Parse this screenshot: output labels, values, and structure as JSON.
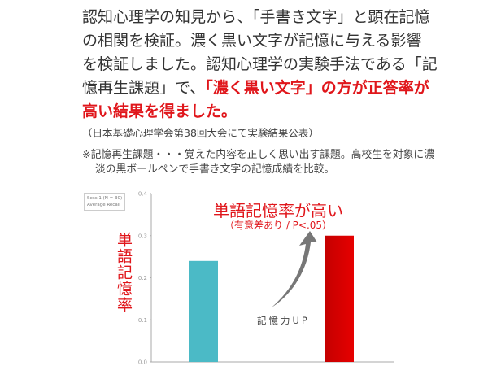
{
  "body": {
    "line1": "認知心理学の知見から、「手書き文字」と顕在記憶",
    "line2": "の相関を検証。濃く黒い文字が記憶に与える影響",
    "line3": "を検証しました。認知心理学の実験手法である「記",
    "line4_normal": "憶再生課題」で、",
    "line4_red": "「濃く黒い文字」の方が正答率が",
    "line5_red": "高い結果を得ました。",
    "source": "（日本基礎心理学会第38回大会にて実験結果公表）",
    "note_line1": "※記憶再生課題・・・覚えた内容を正しく思い出す課題。高校生を対象に濃",
    "note_line2": "淡の黒ボールペンで手書き文字の記憶成績を比較。"
  },
  "chart_data": {
    "type": "bar",
    "legend_box": [
      "Sess 1 (N = 30)",
      "Average Recall"
    ],
    "title": "単語記憶率が高い",
    "subtitle": "（有意差あり / P<.05）",
    "ylabel": "単語記憶率",
    "annotation": "記憶力UP",
    "ylim": [
      0,
      0.4
    ],
    "yticks": [
      "0.0",
      "0.1",
      "0.2",
      "0.3",
      "0.4"
    ],
    "values": [
      0.24,
      0.3
    ],
    "colors": [
      "#4bbac6",
      "#d90000"
    ],
    "grid": false
  }
}
